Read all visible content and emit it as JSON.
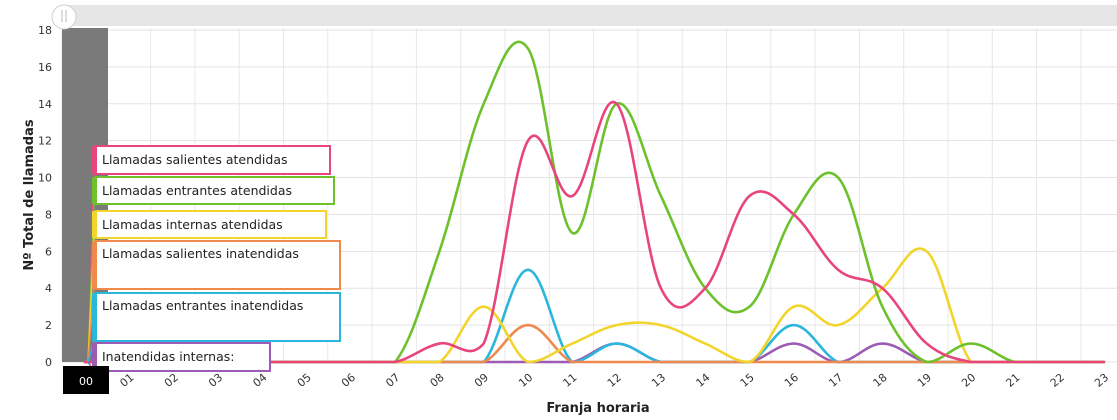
{
  "chart_data": {
    "type": "line",
    "xlabel": "Franja horaria",
    "ylabel": "Nº Total de llamadas",
    "ylim": [
      0,
      18
    ],
    "yticks": [
      0,
      2,
      4,
      6,
      8,
      10,
      12,
      14,
      16,
      18
    ],
    "categories": [
      "00",
      "01",
      "02",
      "03",
      "04",
      "05",
      "06",
      "07",
      "08",
      "09",
      "10",
      "11",
      "12",
      "13",
      "14",
      "15",
      "16",
      "17",
      "18",
      "19",
      "20",
      "21",
      "22",
      "23"
    ],
    "highlighted_category": "00",
    "grid": true,
    "legend_position": "left",
    "series": [
      {
        "name": "Llamadas salientes atendidas",
        "color": "#e8457e",
        "values": [
          0,
          0,
          0,
          0,
          0,
          0,
          0,
          0,
          1,
          1,
          12,
          9,
          14,
          4,
          4,
          9,
          8,
          5,
          4,
          1,
          0,
          0,
          0,
          0
        ]
      },
      {
        "name": "Llamadas entrantes atendidas",
        "color": "#6cc12c",
        "values": [
          0,
          0,
          0,
          0,
          0,
          0,
          0,
          0,
          6,
          14,
          17,
          7,
          14,
          9,
          4,
          3,
          8,
          10,
          3,
          0,
          1,
          0,
          0,
          0
        ]
      },
      {
        "name": "Llamadas internas atendidas",
        "color": "#f2d52c",
        "values": [
          0,
          0,
          0,
          0,
          0,
          0,
          0,
          0,
          0,
          3,
          0,
          1,
          2,
          2,
          1,
          0,
          3,
          2,
          4,
          6,
          0,
          0,
          0,
          0
        ]
      },
      {
        "name": "Llamadas salientes inatendidas",
        "color": "#f0894e",
        "values": [
          0,
          0,
          0,
          0,
          0,
          0,
          0,
          0,
          0,
          0,
          2,
          0,
          0,
          0,
          0,
          0,
          0,
          0,
          0,
          0,
          0,
          0,
          0,
          0
        ]
      },
      {
        "name": "Llamadas entrantes inatendidas",
        "color": "#2bb6de",
        "values": [
          0,
          0,
          0,
          0,
          0,
          0,
          0,
          0,
          0,
          0,
          5,
          0,
          1,
          0,
          0,
          0,
          2,
          0,
          0,
          0,
          0,
          0,
          0,
          0
        ]
      },
      {
        "name": "Inatendidas internas:",
        "color": "#9c5cb4",
        "values": [
          0,
          0,
          0,
          0,
          0,
          0,
          0,
          0,
          0,
          0,
          0,
          0,
          1,
          0,
          0,
          0,
          1,
          0,
          1,
          0,
          0,
          0,
          0,
          0
        ]
      }
    ]
  }
}
